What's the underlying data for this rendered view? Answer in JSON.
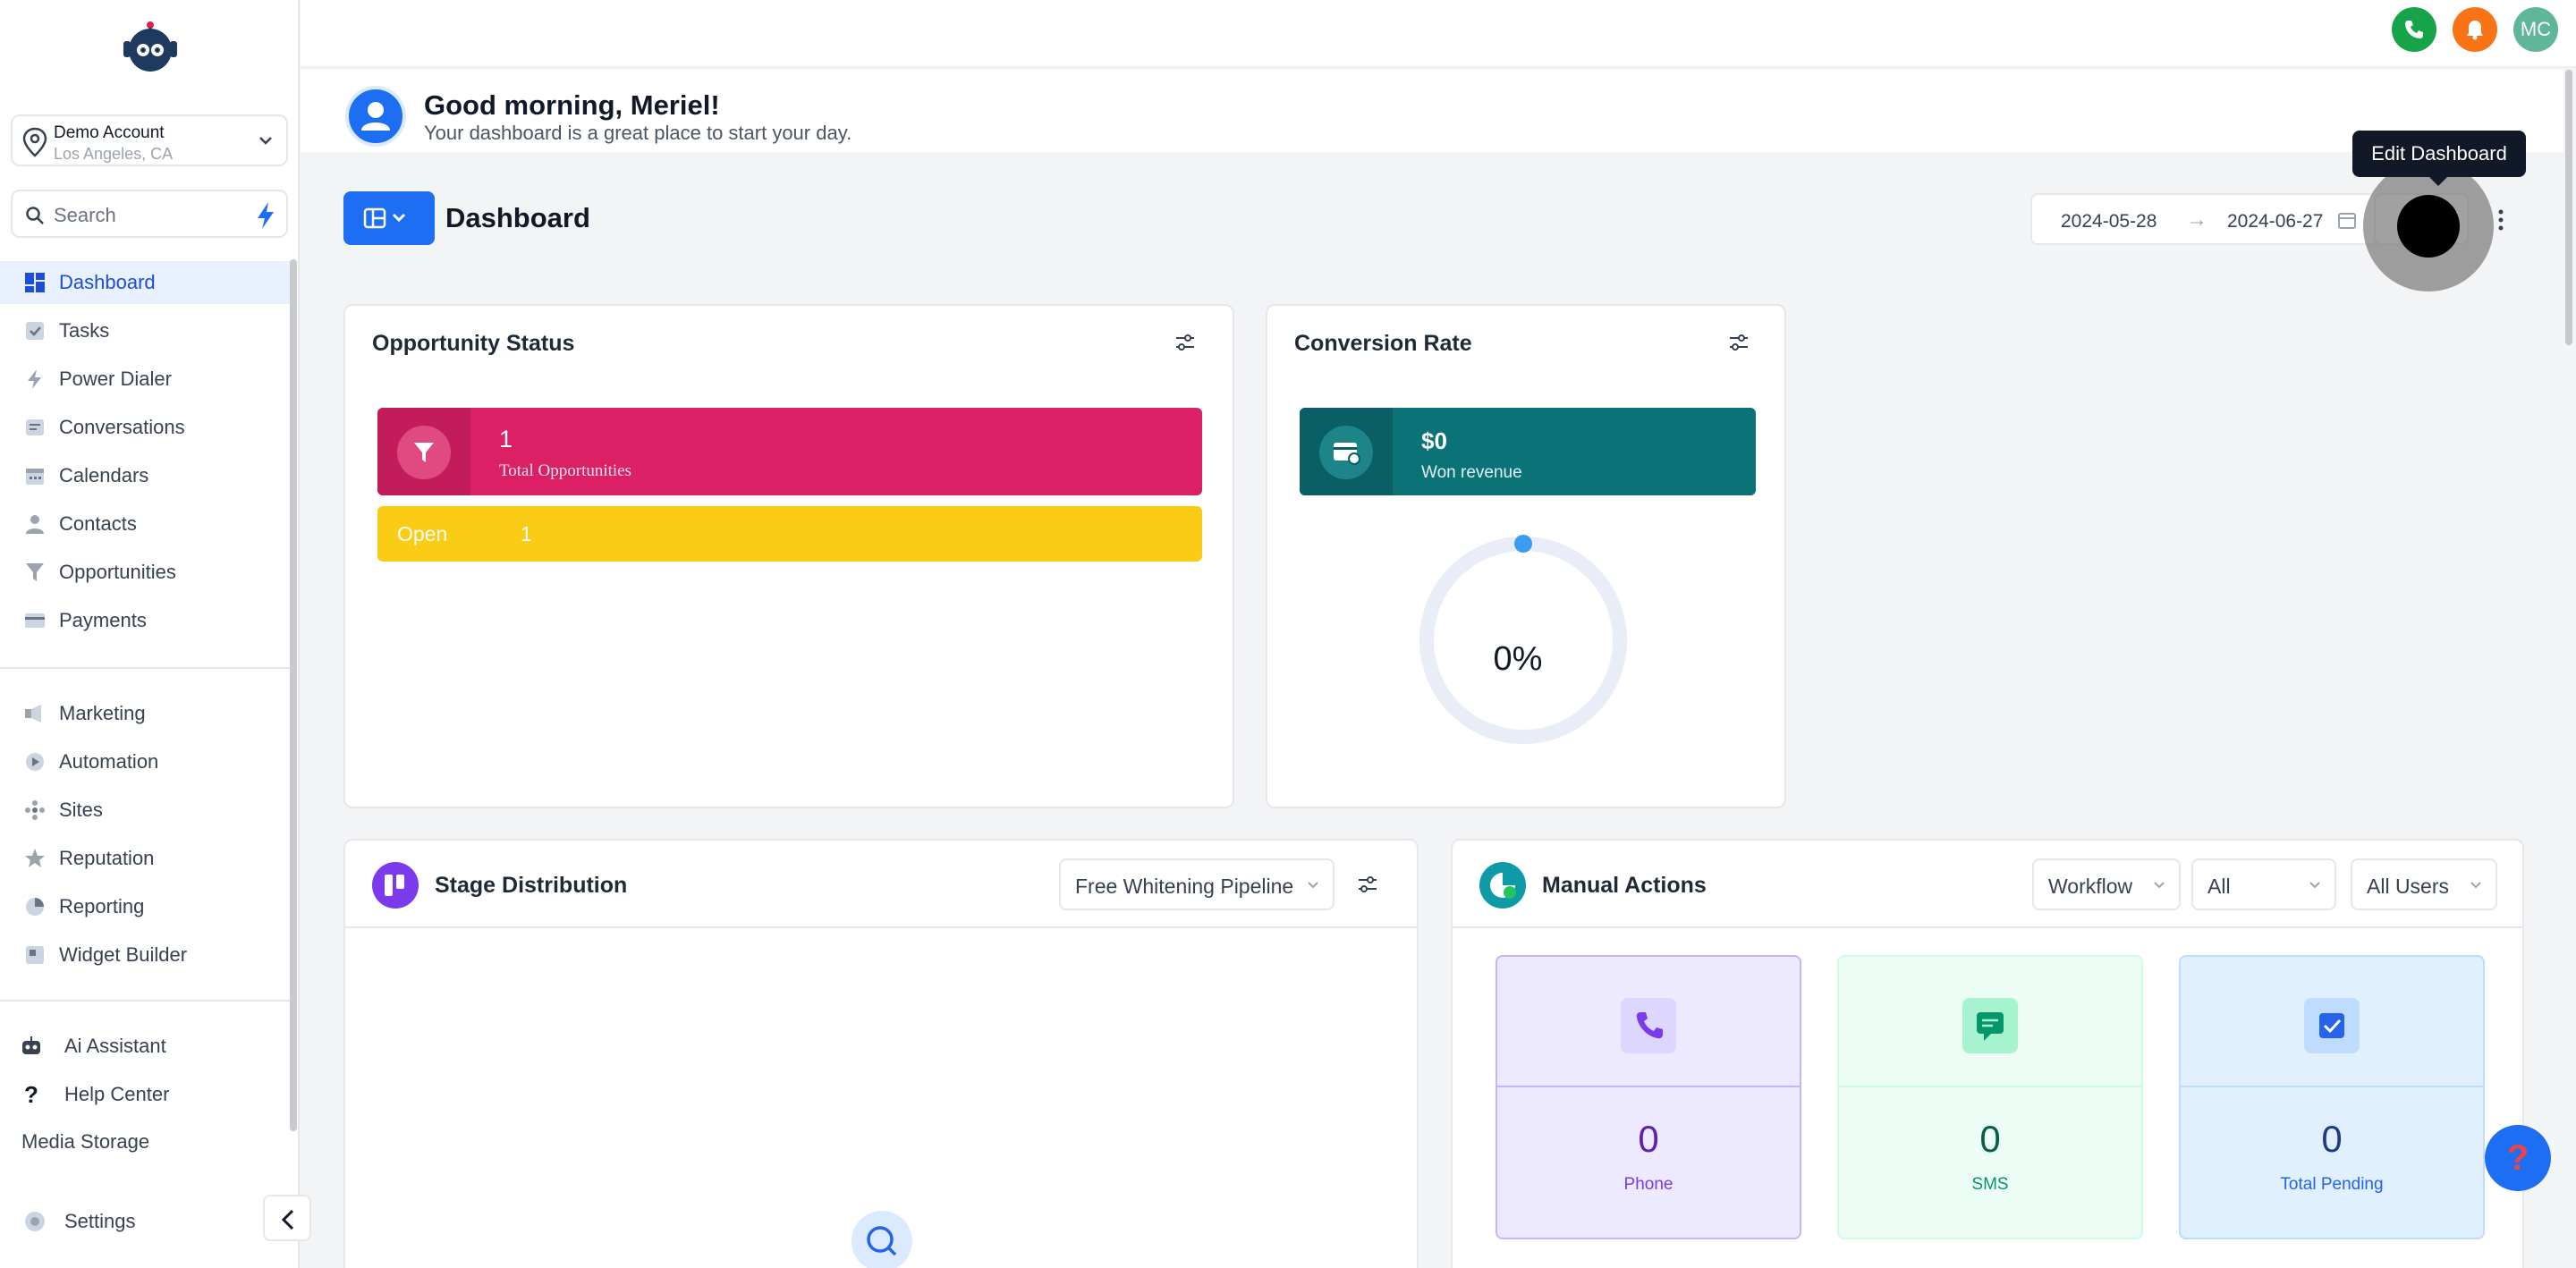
{
  "sidebar": {
    "account": {
      "name": "Demo Account",
      "location": "Los Angeles, CA"
    },
    "search": {
      "placeholder": "Search"
    },
    "items": [
      {
        "label": "Dashboard",
        "icon": "dashboard-icon",
        "active": true
      },
      {
        "label": "Tasks",
        "icon": "tasks-icon"
      },
      {
        "label": "Power Dialer",
        "icon": "bolt-icon"
      },
      {
        "label": "Conversations",
        "icon": "chat-icon"
      },
      {
        "label": "Calendars",
        "icon": "calendar-icon"
      },
      {
        "label": "Contacts",
        "icon": "person-icon"
      },
      {
        "label": "Opportunities",
        "icon": "funnel-icon"
      },
      {
        "label": "Payments",
        "icon": "card-icon"
      }
    ],
    "items2": [
      {
        "label": "Marketing",
        "icon": "megaphone-icon"
      },
      {
        "label": "Automation",
        "icon": "automation-icon"
      },
      {
        "label": "Sites",
        "icon": "sites-icon"
      },
      {
        "label": "Reputation",
        "icon": "star-icon"
      },
      {
        "label": "Reporting",
        "icon": "pie-chart-icon"
      },
      {
        "label": "Widget Builder",
        "icon": "widget-icon"
      }
    ],
    "items3": [
      {
        "label": "Ai Assistant",
        "icon": "robot-icon"
      },
      {
        "label": "Help Center",
        "icon": "question-icon"
      },
      {
        "label": "Media Storage"
      }
    ],
    "settings": "Settings"
  },
  "topbar": {
    "avatar_initials": "MC",
    "colors": {
      "phone": "#16a34a",
      "bell": "#f97316",
      "avatar": "#5fb69b"
    }
  },
  "greeting": {
    "title": "Good morning, Meriel!",
    "subtitle": "Your dashboard is a great place to start your day."
  },
  "dashboard": {
    "title": "Dashboard",
    "date_start": "2024-05-28",
    "date_end": "2024-06-27",
    "tooltip": "Edit Dashboard"
  },
  "opportunity_status": {
    "title": "Opportunity Status",
    "total_value": "1",
    "total_label": "Total Opportunities",
    "open_label": "Open",
    "open_value": "1"
  },
  "conversion_rate": {
    "title": "Conversion Rate",
    "value": "$0",
    "label": "Won revenue",
    "percent": "0%",
    "fraction": 0
  },
  "stage_distribution": {
    "title": "Stage Distribution",
    "pipeline": "Free Whitening Pipeline"
  },
  "manual_actions": {
    "title": "Manual Actions",
    "filters": [
      "Workflow",
      "All",
      "All Users"
    ],
    "stats": [
      {
        "value": "0",
        "label": "Phone"
      },
      {
        "value": "0",
        "label": "SMS"
      },
      {
        "value": "0",
        "label": "Total Pending"
      }
    ]
  }
}
